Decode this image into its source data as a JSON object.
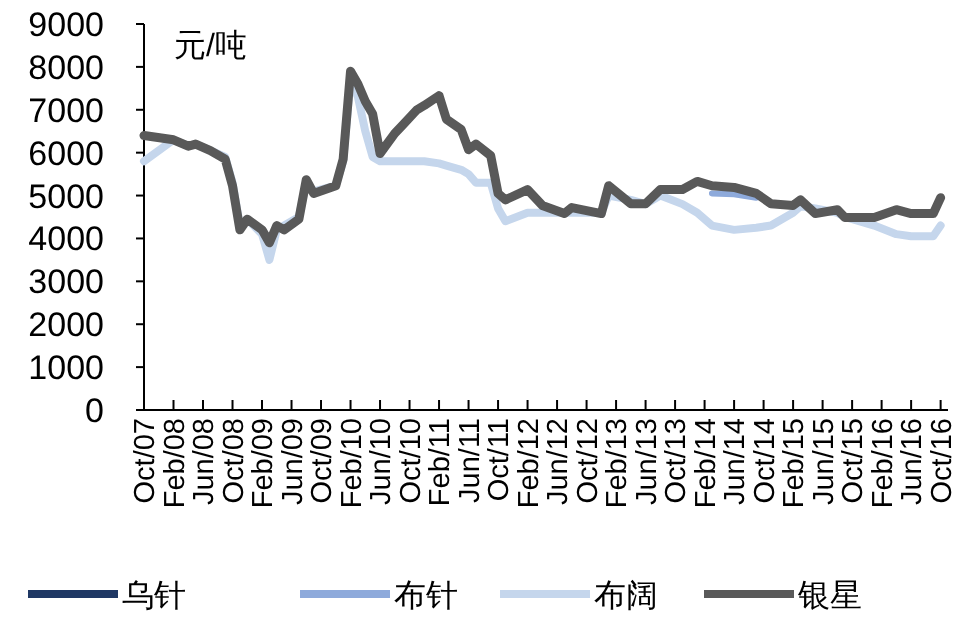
{
  "chart_data": {
    "type": "line",
    "ylabel": "元/吨",
    "x": [
      "2007-10",
      "2008-02",
      "2008-04",
      "2008-05",
      "2008-07",
      "2008-09",
      "2008-10",
      "2008-11",
      "2008-12",
      "2009-02",
      "2009-03",
      "2009-04",
      "2009-05",
      "2009-07",
      "2009-08",
      "2009-09",
      "2009-12",
      "2010-01",
      "2010-02",
      "2010-03",
      "2010-04",
      "2010-05",
      "2010-06",
      "2010-08",
      "2010-09",
      "2010-11",
      "2010-12",
      "2011-02",
      "2011-03",
      "2011-05",
      "2011-06",
      "2011-07",
      "2011-09",
      "2011-10",
      "2011-11",
      "2012-02",
      "2012-04",
      "2012-07",
      "2012-08",
      "2012-12",
      "2013-01",
      "2013-04",
      "2013-06",
      "2013-08",
      "2013-11",
      "2014-01",
      "2014-03",
      "2014-06",
      "2014-09",
      "2014-11",
      "2015-02",
      "2015-03",
      "2015-05",
      "2015-08",
      "2015-09",
      "2016-01",
      "2016-04",
      "2016-06",
      "2016-09",
      "2016-10"
    ],
    "series": [
      {
        "name": "乌针",
        "color": "#1f3864",
        "values": [
          null,
          null,
          null,
          null,
          null,
          null,
          null,
          null,
          null,
          null,
          null,
          null,
          null,
          null,
          null,
          null,
          null,
          null,
          null,
          null,
          null,
          null,
          null,
          null,
          null,
          null,
          null,
          null,
          null,
          null,
          null,
          null,
          null,
          null,
          null,
          null,
          null,
          null,
          null,
          null,
          null,
          null,
          null,
          null,
          null,
          null,
          null,
          null,
          null,
          null,
          null,
          null,
          null,
          null,
          null,
          null,
          null,
          null,
          null,
          null
        ]
      },
      {
        "name": "布针",
        "color": "#8eaadb",
        "values": [
          null,
          null,
          null,
          null,
          null,
          null,
          null,
          null,
          null,
          null,
          null,
          null,
          null,
          null,
          null,
          null,
          null,
          null,
          null,
          null,
          null,
          null,
          null,
          null,
          null,
          null,
          null,
          null,
          null,
          null,
          null,
          null,
          null,
          null,
          null,
          null,
          null,
          null,
          null,
          null,
          null,
          null,
          null,
          null,
          null,
          null,
          5050,
          5030,
          4950,
          null,
          null,
          null,
          null,
          null,
          null,
          null,
          null,
          null,
          null,
          null
        ]
      },
      {
        "name": "布阔",
        "color": "#c5d6ec",
        "values": [
          5800,
          6300,
          6150,
          6200,
          6050,
          5900,
          5300,
          4300,
          4450,
          4100,
          3500,
          4200,
          4300,
          4500,
          5300,
          5100,
          5230,
          5800,
          7700,
          7300,
          6500,
          5900,
          5800,
          5800,
          5800,
          5800,
          5800,
          5750,
          5700,
          5600,
          5500,
          5300,
          5300,
          4700,
          4400,
          4600,
          4600,
          4600,
          4600,
          4600,
          5000,
          4900,
          4800,
          5000,
          4800,
          4600,
          4300,
          4200,
          4250,
          4300,
          4600,
          4750,
          4700,
          4600,
          4500,
          4300,
          4100,
          4050,
          4050,
          4300
        ]
      },
      {
        "name": "银星",
        "color": "#595959",
        "values": [
          6400,
          6300,
          6150,
          6200,
          6050,
          5850,
          5230,
          4200,
          4450,
          4200,
          3900,
          4300,
          4200,
          4450,
          5370,
          5050,
          5230,
          5850,
          7900,
          7600,
          7200,
          6900,
          5980,
          6450,
          6630,
          7000,
          7100,
          7330,
          6780,
          6540,
          6070,
          6200,
          5930,
          5050,
          4900,
          5140,
          4770,
          4580,
          4720,
          4580,
          5230,
          4810,
          4810,
          5140,
          5140,
          5330,
          5230,
          5190,
          5050,
          4810,
          4770,
          4900,
          4580,
          4670,
          4490,
          4490,
          4670,
          4580,
          4580,
          4950
        ]
      }
    ],
    "xlim": [
      "2007-10",
      "2016-11"
    ],
    "xticks": [
      {
        "value": "2007-10",
        "label": "Oct/07"
      },
      {
        "value": "2008-02",
        "label": "Feb/08"
      },
      {
        "value": "2008-06",
        "label": "Jun/08"
      },
      {
        "value": "2008-10",
        "label": "Oct/08"
      },
      {
        "value": "2009-02",
        "label": "Feb/09"
      },
      {
        "value": "2009-06",
        "label": "Jun/09"
      },
      {
        "value": "2009-10",
        "label": "Oct/09"
      },
      {
        "value": "2010-02",
        "label": "Feb/10"
      },
      {
        "value": "2010-06",
        "label": "Jun/10"
      },
      {
        "value": "2010-10",
        "label": "Oct/10"
      },
      {
        "value": "2011-02",
        "label": "Feb/11"
      },
      {
        "value": "2011-06",
        "label": "Jun/11"
      },
      {
        "value": "2011-10",
        "label": "Oct/11"
      },
      {
        "value": "2012-02",
        "label": "Feb/12"
      },
      {
        "value": "2012-06",
        "label": "Jun/12"
      },
      {
        "value": "2012-10",
        "label": "Oct/12"
      },
      {
        "value": "2013-02",
        "label": "Feb/13"
      },
      {
        "value": "2013-06",
        "label": "Jun/13"
      },
      {
        "value": "2013-10",
        "label": "Oct/13"
      },
      {
        "value": "2014-02",
        "label": "Feb/14"
      },
      {
        "value": "2014-06",
        "label": "Jun/14"
      },
      {
        "value": "2014-10",
        "label": "Oct/14"
      },
      {
        "value": "2015-02",
        "label": "Feb/15"
      },
      {
        "value": "2015-06",
        "label": "Jun/15"
      },
      {
        "value": "2015-10",
        "label": "Oct/15"
      },
      {
        "value": "2016-02",
        "label": "Feb/16"
      },
      {
        "value": "2016-06",
        "label": "Jun/16"
      },
      {
        "value": "2016-10",
        "label": "Oct/16"
      }
    ],
    "ylim": [
      0,
      9000
    ],
    "yticks": [
      0,
      1000,
      2000,
      3000,
      4000,
      5000,
      6000,
      7000,
      8000,
      9000
    ],
    "grid": false,
    "legend": "bottom",
    "marker": "none",
    "line_style": "solid"
  }
}
